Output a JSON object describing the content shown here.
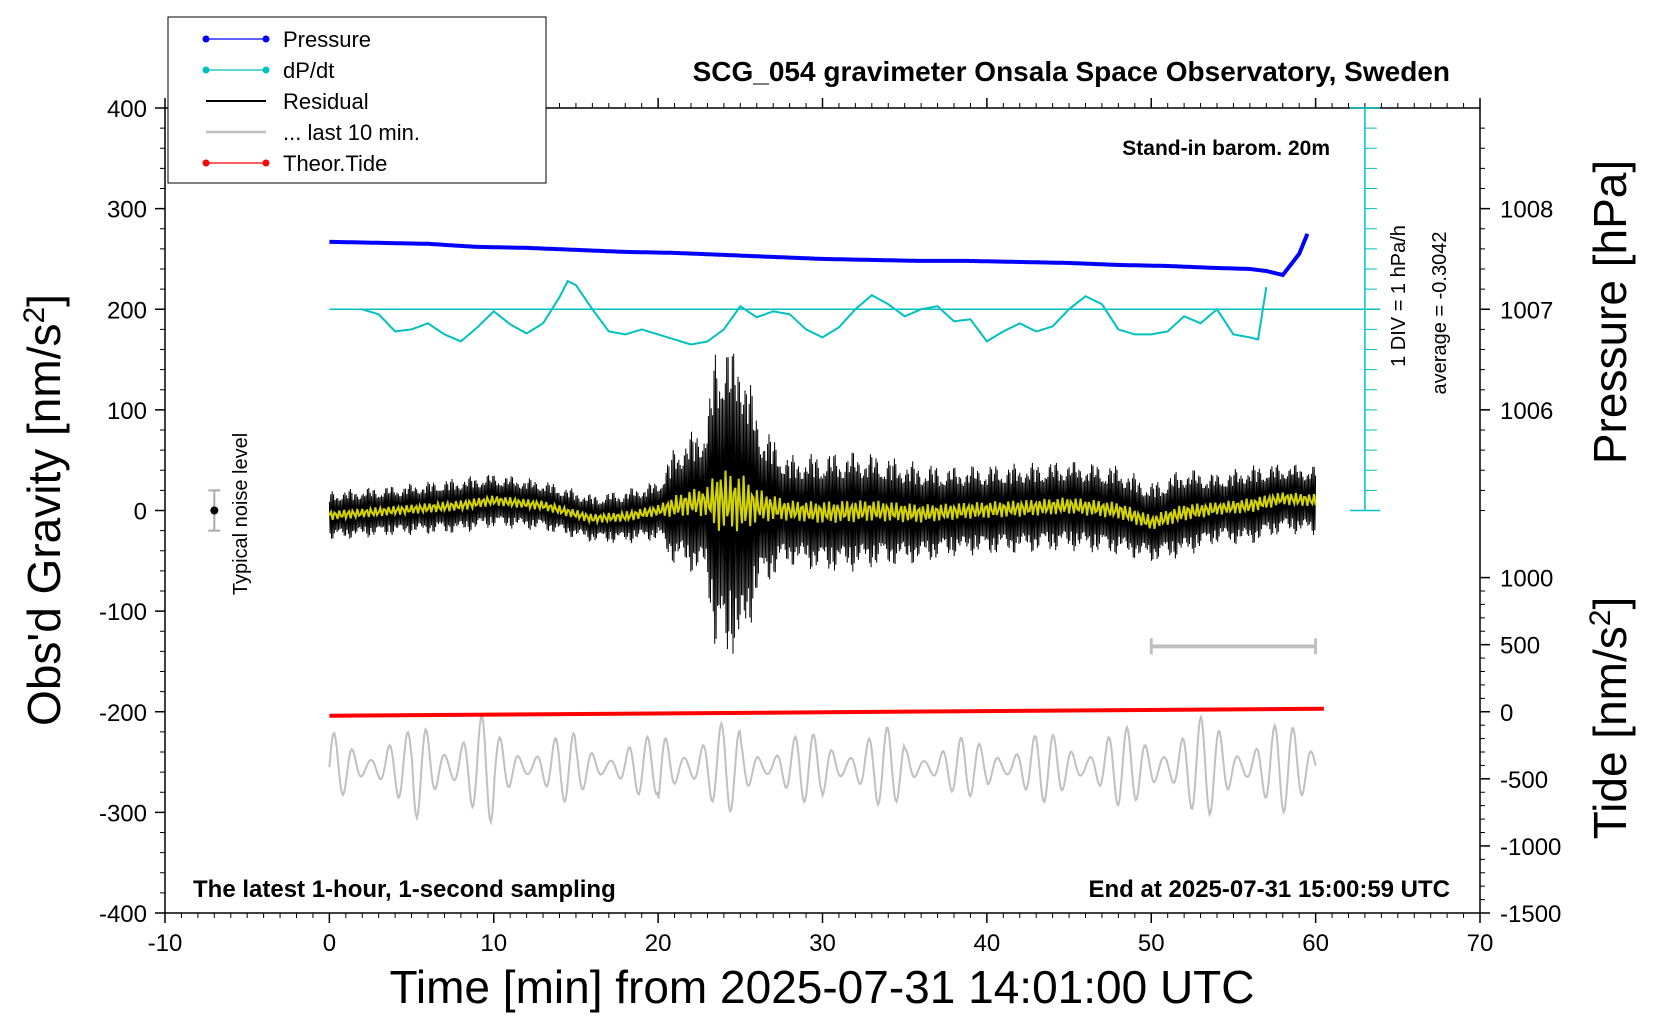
{
  "chart_data": {
    "type": "line",
    "title": "SCG_054 gravimeter Onsala Space Observatory, Sweden",
    "subtitle_left": "The latest 1-hour, 1-second sampling",
    "subtitle_right": "End at 2025-07-31 15:00:59 UTC",
    "baro_note": "Stand-in barom. 20m",
    "dpdt_scale_label": "1 DIV = 1 hPa/h",
    "dpdt_average_label": "average = -0.3042",
    "noise_label": "Typical noise level",
    "xlabel": "Time [min] from 2025-07-31 14:01:00 UTC",
    "ylabel_left": "Obs'd Gravity [nm/s",
    "ylabel_left_sup": "2",
    "ylabel_left_tail": "]",
    "ylabel_right_top": "Pressure [hPa]",
    "ylabel_right_bottom": "Tide [nm/s",
    "ylabel_right_bottom_sup": "2",
    "ylabel_right_bottom_tail": "]",
    "xlim": [
      -10,
      70
    ],
    "ylim": [
      -400,
      400
    ],
    "x_ticks": [
      -10,
      0,
      10,
      20,
      30,
      40,
      50,
      60,
      70
    ],
    "x_tick_labels": [
      "-10",
      "0",
      "10",
      "20",
      "30",
      "40",
      "50",
      "60",
      "70"
    ],
    "y_ticks": [
      -400,
      -300,
      -200,
      -100,
      0,
      100,
      200,
      300,
      400
    ],
    "y_tick_labels": [
      "-400",
      "-300",
      "-200",
      "-100",
      "0",
      "100",
      "200",
      "300",
      "400"
    ],
    "pressure_ticks": [
      1006,
      1007,
      1008
    ],
    "pressure_tick_labels": [
      "1006",
      "1007",
      "1008"
    ],
    "pressure_map": {
      "hPa_at_gravity_0": 1005,
      "gravity_per_hPa": 100
    },
    "tide_ticks": [
      1000,
      500,
      0,
      -500,
      -1000,
      -1500
    ],
    "tide_tick_labels": [
      "1000",
      "500",
      "0",
      "-500",
      "-1000",
      "-1500"
    ],
    "tide_map": {
      "tide_at_gravity_minus_400": -1500,
      "tide_at_gravity_minus_200": 0
    },
    "dpdt_axis": {
      "x": 63,
      "y_top": 400,
      "y_bottom": 0,
      "baseline_y": 200,
      "div_size": 20
    },
    "noise_bar": {
      "x": -7,
      "center": 0,
      "half_range": 20
    },
    "last10_bar": {
      "x_start": 50,
      "x_end": 60,
      "y": -135
    },
    "legend": [
      "Pressure",
      "dP/dt",
      "Residual",
      "... last 10 min.",
      "Theor.Tide"
    ],
    "colors": {
      "pressure": "#0000ff",
      "dpdt": "#00c0c0",
      "residual": "#000000",
      "last10": "#c0c0c0",
      "tide": "#ff0000",
      "smoothed": "#d4d400"
    },
    "series": [
      {
        "name": "Pressure",
        "unit": "gravity-axis units",
        "x": [
          0,
          3,
          6,
          9,
          12,
          15,
          18,
          21,
          24,
          27,
          30,
          33,
          36,
          39,
          42,
          45,
          48,
          51,
          54,
          56,
          57,
          58,
          59,
          59.5
        ],
        "values": [
          267,
          266,
          265,
          262,
          261,
          259,
          257,
          256,
          254,
          252,
          250,
          249,
          248,
          248,
          247,
          246,
          244,
          243,
          241,
          240,
          238,
          234,
          255,
          275
        ]
      },
      {
        "name": "dP/dt",
        "unit": "gravity-axis units",
        "x": [
          2,
          3,
          4,
          5,
          6,
          7,
          8,
          9,
          10,
          11,
          12,
          13,
          14,
          14.5,
          15,
          16,
          17,
          18,
          19,
          20,
          21,
          22,
          23,
          24,
          25,
          26,
          27,
          28,
          29,
          30,
          31,
          32,
          33,
          34,
          35,
          36,
          37,
          38,
          39,
          40,
          41,
          42,
          43,
          44,
          45,
          46,
          47,
          48,
          49,
          50,
          51,
          52,
          53,
          54,
          55,
          56,
          56.5,
          57
        ],
        "values": [
          200,
          195,
          178,
          180,
          186,
          175,
          168,
          182,
          198,
          185,
          176,
          186,
          212,
          228,
          224,
          200,
          178,
          175,
          180,
          175,
          170,
          165,
          168,
          180,
          203,
          192,
          198,
          195,
          180,
          172,
          182,
          200,
          214,
          205,
          193,
          200,
          203,
          188,
          190,
          168,
          178,
          186,
          178,
          183,
          200,
          213,
          205,
          180,
          175,
          175,
          178,
          193,
          186,
          200,
          175,
          172,
          170,
          222
        ]
      },
      {
        "name": "Residual",
        "unit": "nm/s2",
        "x": [
          0,
          60
        ],
        "envelope_x": [
          0,
          4,
          8,
          12,
          16,
          20,
          21,
          22,
          23,
          23.5,
          24,
          24.5,
          25,
          25.5,
          26,
          27,
          28,
          30,
          32,
          34,
          36,
          38,
          40,
          42,
          44,
          46,
          48,
          50,
          52,
          54,
          56,
          58,
          60
        ],
        "envelope_amplitude": [
          25,
          25,
          28,
          26,
          24,
          30,
          60,
          70,
          85,
          160,
          175,
          150,
          170,
          130,
          95,
          70,
          55,
          60,
          60,
          55,
          50,
          45,
          45,
          45,
          45,
          45,
          45,
          40,
          45,
          35,
          40,
          35,
          35
        ]
      },
      {
        "name": "... last 10 min.",
        "unit": "nm/s2",
        "x": [
          0,
          60
        ],
        "center": -255,
        "amplitude": [
          35,
          55,
          35,
          30,
          45,
          35,
          40,
          30,
          35,
          40,
          50,
          45,
          35
        ]
      },
      {
        "name": "Theor.Tide",
        "unit": "nm/s2",
        "x": [
          0,
          60.5
        ],
        "values": [
          -204,
          -197
        ]
      },
      {
        "name": "Smoothed residual",
        "unit": "nm/s2",
        "x": [
          0,
          4,
          8,
          10,
          13,
          16,
          18,
          20,
          22,
          24,
          26,
          28,
          30,
          33,
          36,
          39,
          42,
          45,
          48,
          50,
          52,
          54,
          56,
          58,
          60
        ],
        "values": [
          -5,
          0,
          5,
          10,
          5,
          -8,
          -6,
          0,
          8,
          10,
          5,
          0,
          -2,
          0,
          -3,
          0,
          2,
          5,
          0,
          -12,
          -2,
          2,
          5,
          12,
          10
        ]
      }
    ]
  }
}
